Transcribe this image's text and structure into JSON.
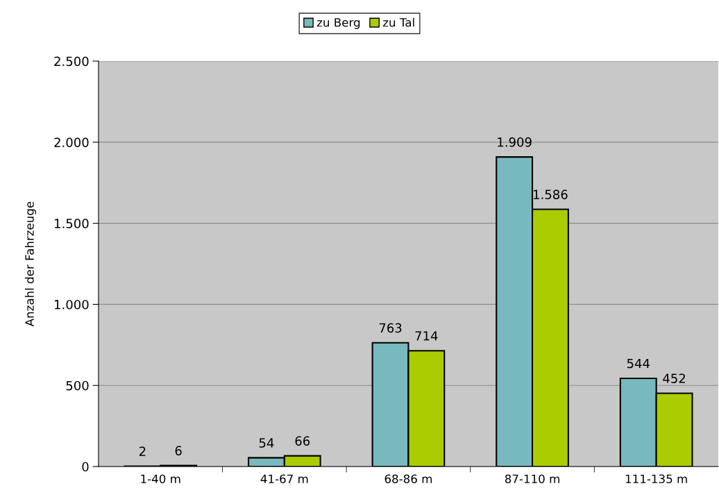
{
  "chart_data": {
    "type": "bar",
    "ylabel": "Anzahl der Fahrzeuge",
    "categories": [
      "1-40 m",
      "41-67 m",
      "68-86 m",
      "87-110 m",
      "111-135 m"
    ],
    "series": [
      {
        "name": "zu Berg",
        "color": "#77b9bf",
        "values": [
          2,
          54,
          763,
          1909,
          544
        ],
        "value_labels": [
          "2",
          "54",
          "763",
          "1.909",
          "544"
        ]
      },
      {
        "name": "zu Tal",
        "color": "#aacc00",
        "values": [
          6,
          66,
          714,
          1586,
          452
        ],
        "value_labels": [
          "6",
          "66",
          "714",
          "1.586",
          "452"
        ]
      }
    ],
    "ylim": [
      0,
      2500
    ],
    "yticks": [
      0,
      {
        "value": 500,
        "label": "500"
      },
      {
        "value": 1000,
        "label": "1.000"
      },
      {
        "value": 1500,
        "label": "1.500"
      },
      {
        "value": 2000,
        "label": "2.000"
      },
      {
        "value": 2500,
        "label": "2.500"
      }
    ],
    "grid": "y",
    "legend": "top"
  }
}
